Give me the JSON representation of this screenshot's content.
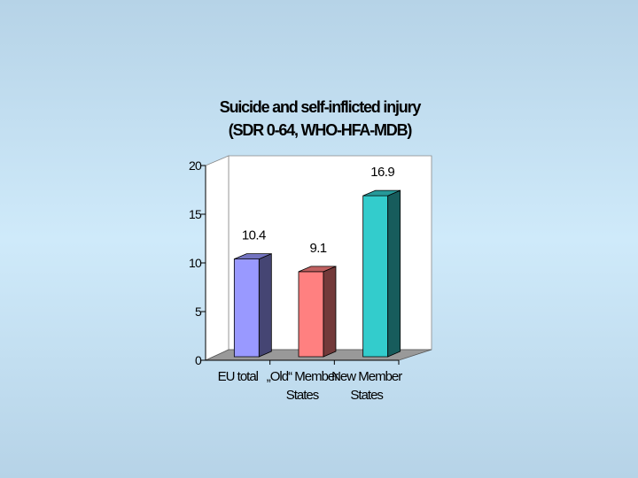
{
  "chart_data": {
    "type": "bar3d",
    "title": "Suicide and self-inflicted injury",
    "subtitle": "(SDR 0-64, WHO-HFA-MDB)",
    "categories": [
      "EU total",
      "„Old“ Member States",
      "New Member States"
    ],
    "values": [
      10.4,
      9.1,
      16.9
    ],
    "colors": [
      "#9999ff",
      "#ff8080",
      "#33cccc"
    ],
    "ylim": [
      0,
      20
    ],
    "yticks": [
      0,
      5,
      10,
      15,
      20
    ]
  }
}
